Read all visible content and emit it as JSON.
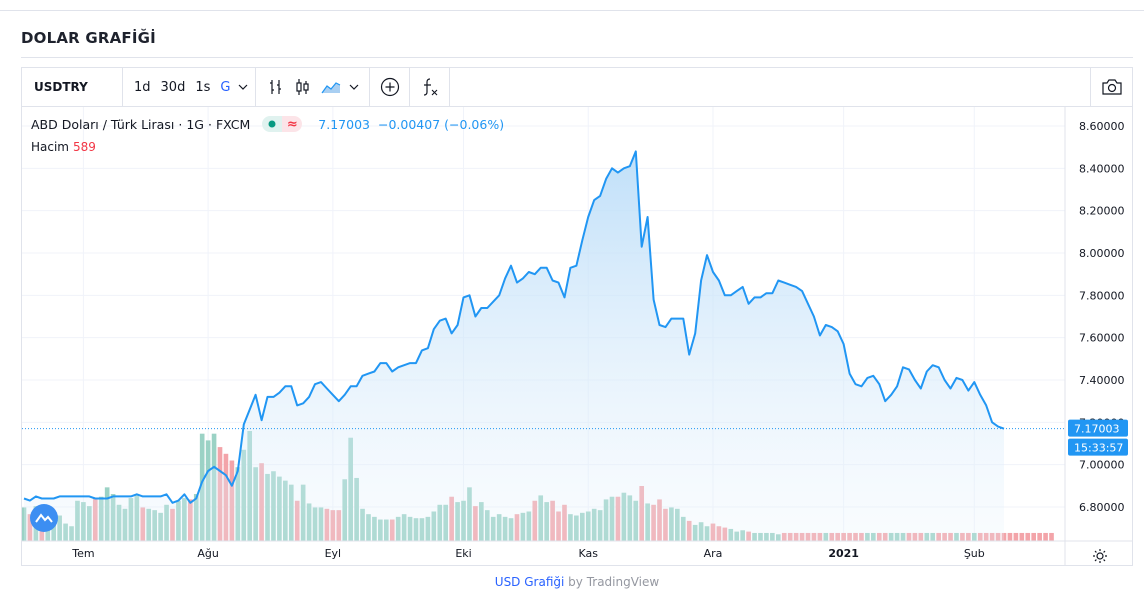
{
  "page": {
    "title": "DOLAR GRAFİĞİ"
  },
  "toolbar": {
    "symbol": "USDTRY",
    "intervals": [
      "1d",
      "30d",
      "1s",
      "G"
    ],
    "active_interval": "G"
  },
  "legend": {
    "instrument": "ABD Doları / Türk Lirası",
    "interval": "1G",
    "exchange": "FXCM",
    "badge_symbol": "≈",
    "last_price": "7.17003",
    "change": "−0.00407 (−0.06%)",
    "volume_label": "Hacim",
    "volume_value": "589"
  },
  "footer": {
    "link_text": "USD Grafiği",
    "by_text": " by TradingView"
  },
  "colors": {
    "line": "#2196f3",
    "area_top": "#b9dcf8",
    "up_volume": "#9bd2c5",
    "down_volume": "#f3a4a9",
    "label_bg": "#2196f3"
  },
  "chart_data": {
    "type": "area",
    "title": "ABD Doları / Türk Lirası · 1G · FXCM",
    "ylim": [
      6.7,
      8.65
    ],
    "yticks": [
      "8.60000",
      "8.40000",
      "8.20000",
      "8.00000",
      "7.80000",
      "7.60000",
      "7.40000",
      "7.20000",
      "7.00000",
      "6.80000"
    ],
    "xticks": [
      {
        "label": "Tem",
        "i": 10
      },
      {
        "label": "Ağu",
        "i": 31
      },
      {
        "label": "Eyl",
        "i": 52
      },
      {
        "label": "Eki",
        "i": 74
      },
      {
        "label": "Kas",
        "i": 95
      },
      {
        "label": "Ara",
        "i": 116
      },
      {
        "label": "2021",
        "i": 138
      },
      {
        "label": "Şub",
        "i": 160
      }
    ],
    "last_value_label": "7.17003",
    "time_label": "15:33:57",
    "prices": [
      6.84,
      6.83,
      6.85,
      6.84,
      6.84,
      6.84,
      6.85,
      6.85,
      6.85,
      6.85,
      6.85,
      6.85,
      6.84,
      6.84,
      6.84,
      6.85,
      6.85,
      6.85,
      6.85,
      6.86,
      6.85,
      6.85,
      6.85,
      6.85,
      6.86,
      6.82,
      6.83,
      6.86,
      6.82,
      6.84,
      6.92,
      6.97,
      6.99,
      6.97,
      6.95,
      6.9,
      6.97,
      7.19,
      7.26,
      7.33,
      7.21,
      7.32,
      7.32,
      7.34,
      7.37,
      7.37,
      7.28,
      7.29,
      7.32,
      7.38,
      7.39,
      7.36,
      7.33,
      7.3,
      7.33,
      7.37,
      7.37,
      7.42,
      7.43,
      7.44,
      7.48,
      7.48,
      7.44,
      7.46,
      7.47,
      7.48,
      7.48,
      7.54,
      7.55,
      7.64,
      7.68,
      7.69,
      7.62,
      7.66,
      7.79,
      7.8,
      7.7,
      7.74,
      7.74,
      7.77,
      7.8,
      7.88,
      7.94,
      7.86,
      7.88,
      7.91,
      7.9,
      7.93,
      7.93,
      7.87,
      7.86,
      7.79,
      7.93,
      7.94,
      8.06,
      8.17,
      8.25,
      8.27,
      8.35,
      8.4,
      8.38,
      8.4,
      8.41,
      8.48,
      8.03,
      8.17,
      7.78,
      7.66,
      7.65,
      7.69,
      7.69,
      7.69,
      7.52,
      7.62,
      7.87,
      7.99,
      7.91,
      7.87,
      7.8,
      7.8,
      7.82,
      7.84,
      7.76,
      7.79,
      7.79,
      7.81,
      7.81,
      7.87,
      7.86,
      7.85,
      7.84,
      7.82,
      7.76,
      7.7,
      7.61,
      7.66,
      7.65,
      7.63,
      7.57,
      7.43,
      7.38,
      7.37,
      7.41,
      7.42,
      7.38,
      7.3,
      7.33,
      7.37,
      7.46,
      7.45,
      7.4,
      7.36,
      7.44,
      7.47,
      7.46,
      7.4,
      7.36,
      7.41,
      7.4,
      7.35,
      7.39,
      7.33,
      7.28,
      7.2,
      7.18,
      7.17
    ],
    "volumes": [
      250,
      200,
      260,
      180,
      220,
      210,
      190,
      130,
      110,
      300,
      290,
      260,
      320,
      330,
      400,
      350,
      270,
      240,
      320,
      340,
      250,
      240,
      230,
      210,
      270,
      240,
      300,
      320,
      310,
      350,
      800,
      750,
      800,
      700,
      650,
      600,
      550,
      680,
      820,
      550,
      580,
      500,
      520,
      480,
      450,
      420,
      300,
      420,
      280,
      250,
      250,
      240,
      230,
      230,
      460,
      770,
      470,
      240,
      200,
      180,
      160,
      160,
      160,
      180,
      200,
      180,
      170,
      170,
      180,
      220,
      270,
      270,
      330,
      290,
      300,
      400,
      260,
      290,
      230,
      180,
      200,
      180,
      170,
      200,
      210,
      220,
      300,
      340,
      290,
      300,
      220,
      270,
      200,
      190,
      210,
      220,
      240,
      230,
      310,
      330,
      330,
      360,
      340,
      300,
      410,
      280,
      270,
      310,
      240,
      250,
      240,
      180,
      150,
      120,
      140,
      110,
      130,
      110,
      100,
      90,
      70,
      80,
      70,
      60,
      60,
      60,
      60,
      50,
      60,
      60,
      60,
      60,
      60,
      60,
      60,
      60,
      60,
      60,
      60,
      60,
      60,
      60,
      60,
      60,
      60,
      60,
      60,
      60,
      60,
      60,
      60,
      60,
      60,
      60,
      60,
      60,
      60,
      60,
      60,
      60,
      60,
      60,
      60,
      60,
      60,
      60,
      60,
      60,
      60,
      60,
      60,
      60,
      60,
      60
    ],
    "volume_colors": "ratio"
  }
}
